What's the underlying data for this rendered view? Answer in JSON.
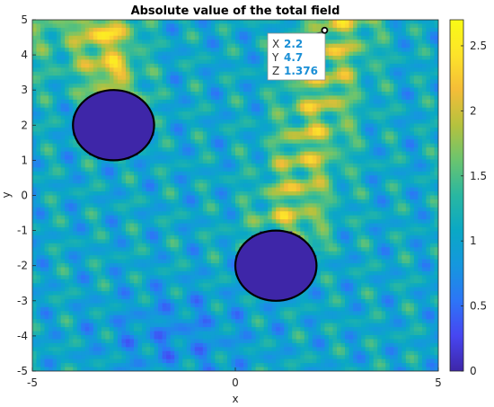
{
  "chart_data": {
    "type": "heatmap",
    "title": "Absolute value of the total field",
    "xlabel": "x",
    "ylabel": "y",
    "xlim": [
      -5,
      5
    ],
    "ylim": [
      -5,
      5
    ],
    "x_ticks": [
      -5,
      0,
      5
    ],
    "y_ticks": [
      -5,
      -4,
      -3,
      -2,
      -1,
      0,
      1,
      2,
      3,
      4,
      5
    ],
    "colorbar": {
      "range": [
        0,
        2.7
      ],
      "ticks": [
        0,
        0.5,
        1,
        1.5,
        2,
        2.5
      ],
      "colormap": "parula",
      "stops": [
        "#3e26a8",
        "#4746f1",
        "#2d75f7",
        "#1597de",
        "#0aa8c5",
        "#29b7a1",
        "#6ac46f",
        "#b5c23e",
        "#f4bd38",
        "#fde32a",
        "#f9fb15"
      ]
    },
    "obstacles": [
      {
        "name": "scatterer-top-left",
        "cx": -3,
        "cy": 2,
        "r": 1,
        "field_value": 0
      },
      {
        "name": "scatterer-bottom-right",
        "cx": 1,
        "cy": -2,
        "r": 1,
        "field_value": 0
      }
    ],
    "datatip": {
      "x_label": "X",
      "x_value": "2.2",
      "y_label": "Y",
      "y_value": "4.7",
      "z_label": "Z",
      "z_value": "1.376",
      "x": 2.2,
      "y": 4.7
    }
  }
}
